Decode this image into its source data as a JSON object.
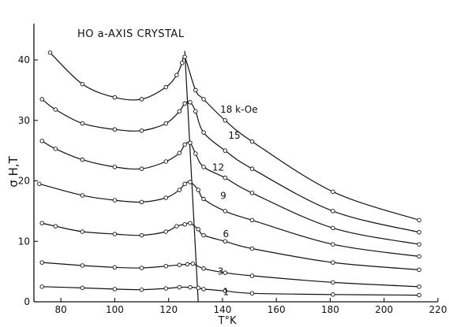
{
  "chart_data": {
    "type": "line",
    "title": "HO a-AXIS CRYSTAL",
    "xlabel": "T°K",
    "ylabel": "σ H,T",
    "xlim": [
      70,
      220
    ],
    "ylim": [
      0,
      46
    ],
    "x_ticks": [
      80,
      100,
      120,
      140,
      160,
      180,
      200,
      220
    ],
    "y_ticks": [
      0,
      10,
      20,
      30,
      40
    ],
    "grid": false,
    "legend": "none",
    "series": [
      {
        "name": "18 k-Oe",
        "label_at": [
          138,
          31.8
        ],
        "points": [
          [
            76,
            41.2
          ],
          [
            88,
            36
          ],
          [
            100,
            33.8
          ],
          [
            110,
            33.5
          ],
          [
            119,
            35.5
          ],
          [
            123,
            37.5
          ],
          [
            125,
            39.5
          ],
          [
            126,
            40.5
          ],
          [
            130,
            35
          ],
          [
            133,
            33.5
          ],
          [
            141,
            30
          ],
          [
            151,
            26.5
          ],
          [
            181,
            18.2
          ],
          [
            213,
            13.5
          ]
        ]
      },
      {
        "name": "15",
        "label_at": [
          141,
          27.5
        ],
        "points": [
          [
            73,
            33.5
          ],
          [
            78,
            31.8
          ],
          [
            88,
            29.5
          ],
          [
            100,
            28.5
          ],
          [
            110,
            28.3
          ],
          [
            119,
            29.5
          ],
          [
            124,
            31.5
          ],
          [
            126,
            32.8
          ],
          [
            128,
            33
          ],
          [
            130,
            31.5
          ],
          [
            133,
            28
          ],
          [
            141,
            25
          ],
          [
            151,
            22
          ],
          [
            181,
            15
          ],
          [
            213,
            11.5
          ]
        ]
      },
      {
        "name": "12",
        "label_at": [
          135,
          22.2
        ],
        "points": [
          [
            73,
            26.6
          ],
          [
            78,
            25.3
          ],
          [
            88,
            23.5
          ],
          [
            100,
            22.3
          ],
          [
            110,
            22
          ],
          [
            119,
            23.2
          ],
          [
            124,
            24.6
          ],
          [
            126,
            26
          ],
          [
            128,
            26.3
          ],
          [
            130,
            24.5
          ],
          [
            133,
            22.3
          ],
          [
            141,
            20.5
          ],
          [
            151,
            18
          ],
          [
            181,
            12.2
          ],
          [
            213,
            9.5
          ]
        ]
      },
      {
        "name": "9",
        "label_at": [
          138,
          17.5
        ],
        "points": [
          [
            72,
            19.5
          ],
          [
            88,
            17.6
          ],
          [
            100,
            16.8
          ],
          [
            110,
            16.5
          ],
          [
            119,
            17.2
          ],
          [
            124,
            18.5
          ],
          [
            126,
            19.5
          ],
          [
            128,
            19.8
          ],
          [
            131,
            18.5
          ],
          [
            133,
            17
          ],
          [
            141,
            15
          ],
          [
            151,
            13.5
          ],
          [
            181,
            9.5
          ],
          [
            213,
            7.5
          ]
        ]
      },
      {
        "name": "6",
        "label_at": [
          139,
          11.2
        ],
        "points": [
          [
            73,
            13
          ],
          [
            78,
            12.5
          ],
          [
            88,
            11.6
          ],
          [
            100,
            11.2
          ],
          [
            110,
            11
          ],
          [
            119,
            11.6
          ],
          [
            123,
            12.5
          ],
          [
            126,
            12.8
          ],
          [
            128,
            13
          ],
          [
            131,
            12
          ],
          [
            133,
            11
          ],
          [
            141,
            10
          ],
          [
            151,
            8.8
          ],
          [
            181,
            6.5
          ],
          [
            213,
            5.3
          ]
        ]
      },
      {
        "name": "3",
        "label_at": [
          137,
          5
        ],
        "points": [
          [
            73,
            6.5
          ],
          [
            88,
            6
          ],
          [
            100,
            5.7
          ],
          [
            110,
            5.6
          ],
          [
            119,
            5.9
          ],
          [
            124,
            6.1
          ],
          [
            127,
            6.2
          ],
          [
            129,
            6.3
          ],
          [
            133,
            5.5
          ],
          [
            141,
            4.8
          ],
          [
            151,
            4.3
          ],
          [
            181,
            3.2
          ],
          [
            213,
            2.5
          ]
        ]
      },
      {
        "name": "1",
        "label_at": [
          139,
          1.6
        ],
        "points": [
          [
            73,
            2.5
          ],
          [
            88,
            2.3
          ],
          [
            100,
            2.1
          ],
          [
            110,
            2
          ],
          [
            119,
            2.2
          ],
          [
            124,
            2.4
          ],
          [
            128,
            2.4
          ],
          [
            131,
            2.3
          ],
          [
            133,
            2.1
          ],
          [
            141,
            1.8
          ],
          [
            151,
            1.4
          ],
          [
            181,
            1.2
          ],
          [
            213,
            1.1
          ]
        ]
      }
    ],
    "peak_line": [
      [
        126,
        41.5
      ],
      [
        131,
        0
      ]
    ]
  }
}
